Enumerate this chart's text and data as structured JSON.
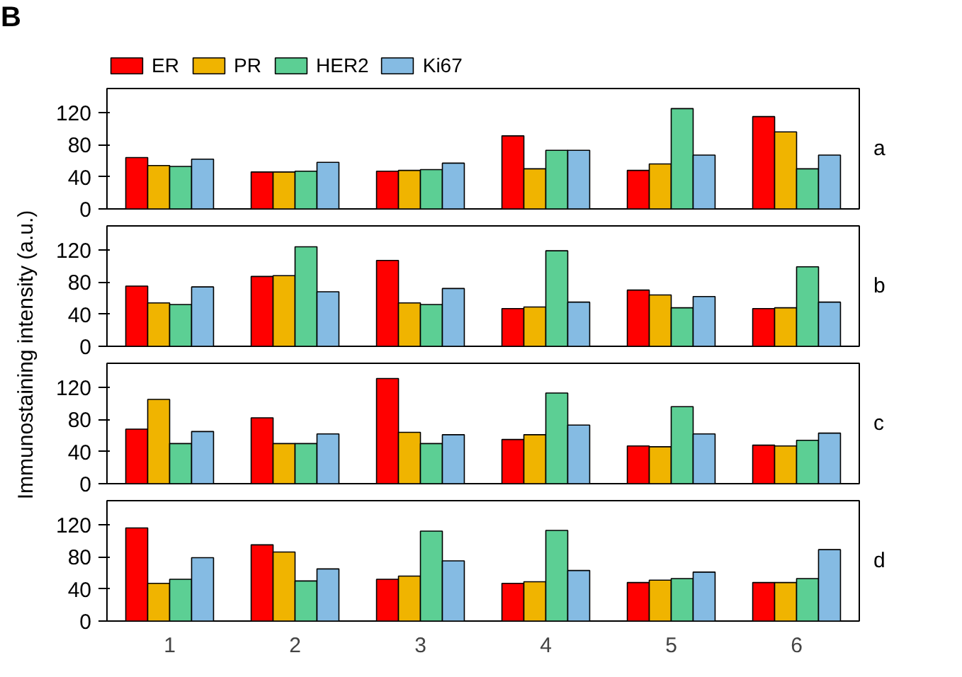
{
  "chart_data": [
    {
      "type": "bar",
      "title": "B",
      "ylabel": "Immunostaining intensity (a.u.)",
      "annotations": [
        "a"
      ],
      "categories": [
        "1",
        "2",
        "3",
        "4",
        "5",
        "6"
      ],
      "ylim": [
        0,
        150
      ],
      "yticks": [
        0,
        40,
        80,
        120
      ],
      "tick_labels": "y",
      "legend": "top left",
      "grid": false,
      "series": [
        {
          "name": "ER",
          "color": "#ff0000",
          "values": [
            64,
            46,
            47,
            91,
            48,
            115
          ]
        },
        {
          "name": "PR",
          "color": "#f0b400",
          "values": [
            54,
            46,
            48,
            50,
            56,
            96
          ]
        },
        {
          "name": "HER2",
          "color": "#5ccf94",
          "values": [
            53,
            47,
            49,
            73,
            125,
            50
          ]
        },
        {
          "name": "Ki67",
          "color": "#85bbe3",
          "values": [
            62,
            58,
            57,
            73,
            67,
            67
          ]
        }
      ]
    },
    {
      "type": "bar",
      "annotations": [
        "b"
      ],
      "categories": [
        "1",
        "2",
        "3",
        "4",
        "5",
        "6"
      ],
      "ylim": [
        0,
        150
      ],
      "yticks": [
        0,
        40,
        80,
        120
      ],
      "tick_labels": "y",
      "grid": false,
      "series": [
        {
          "color": "#ff0000",
          "values": [
            75,
            87,
            107,
            47,
            70,
            47
          ]
        },
        {
          "color": "#f0b400",
          "values": [
            54,
            88,
            54,
            49,
            64,
            48
          ]
        },
        {
          "color": "#5ccf94",
          "values": [
            52,
            124,
            52,
            119,
            48,
            99
          ]
        },
        {
          "color": "#85bbe3",
          "values": [
            74,
            68,
            72,
            55,
            62,
            55
          ]
        }
      ]
    },
    {
      "type": "bar",
      "annotations": [
        "c"
      ],
      "categories": [
        "1",
        "2",
        "3",
        "4",
        "5",
        "6"
      ],
      "ylim": [
        0,
        150
      ],
      "yticks": [
        0,
        40,
        80,
        120
      ],
      "tick_labels": "y",
      "grid": false,
      "series": [
        {
          "color": "#ff0000",
          "values": [
            68,
            82,
            131,
            55,
            47,
            48
          ]
        },
        {
          "color": "#f0b400",
          "values": [
            105,
            50,
            64,
            61,
            46,
            47
          ]
        },
        {
          "color": "#5ccf94",
          "values": [
            50,
            50,
            50,
            113,
            96,
            54
          ]
        },
        {
          "color": "#85bbe3",
          "values": [
            65,
            62,
            61,
            73,
            62,
            63
          ]
        }
      ]
    },
    {
      "type": "bar",
      "annotations": [
        "d"
      ],
      "categories": [
        "1",
        "2",
        "3",
        "4",
        "5",
        "6"
      ],
      "ylim": [
        0,
        150
      ],
      "yticks": [
        0,
        40,
        80,
        120
      ],
      "grid": false,
      "series": [
        {
          "color": "#ff0000",
          "values": [
            116,
            95,
            52,
            47,
            48,
            48
          ]
        },
        {
          "color": "#f0b400",
          "values": [
            47,
            86,
            56,
            49,
            51,
            48
          ]
        },
        {
          "color": "#5ccf94",
          "values": [
            52,
            50,
            112,
            113,
            53,
            53
          ]
        },
        {
          "color": "#85bbe3",
          "values": [
            79,
            65,
            75,
            63,
            61,
            89
          ]
        }
      ]
    }
  ]
}
